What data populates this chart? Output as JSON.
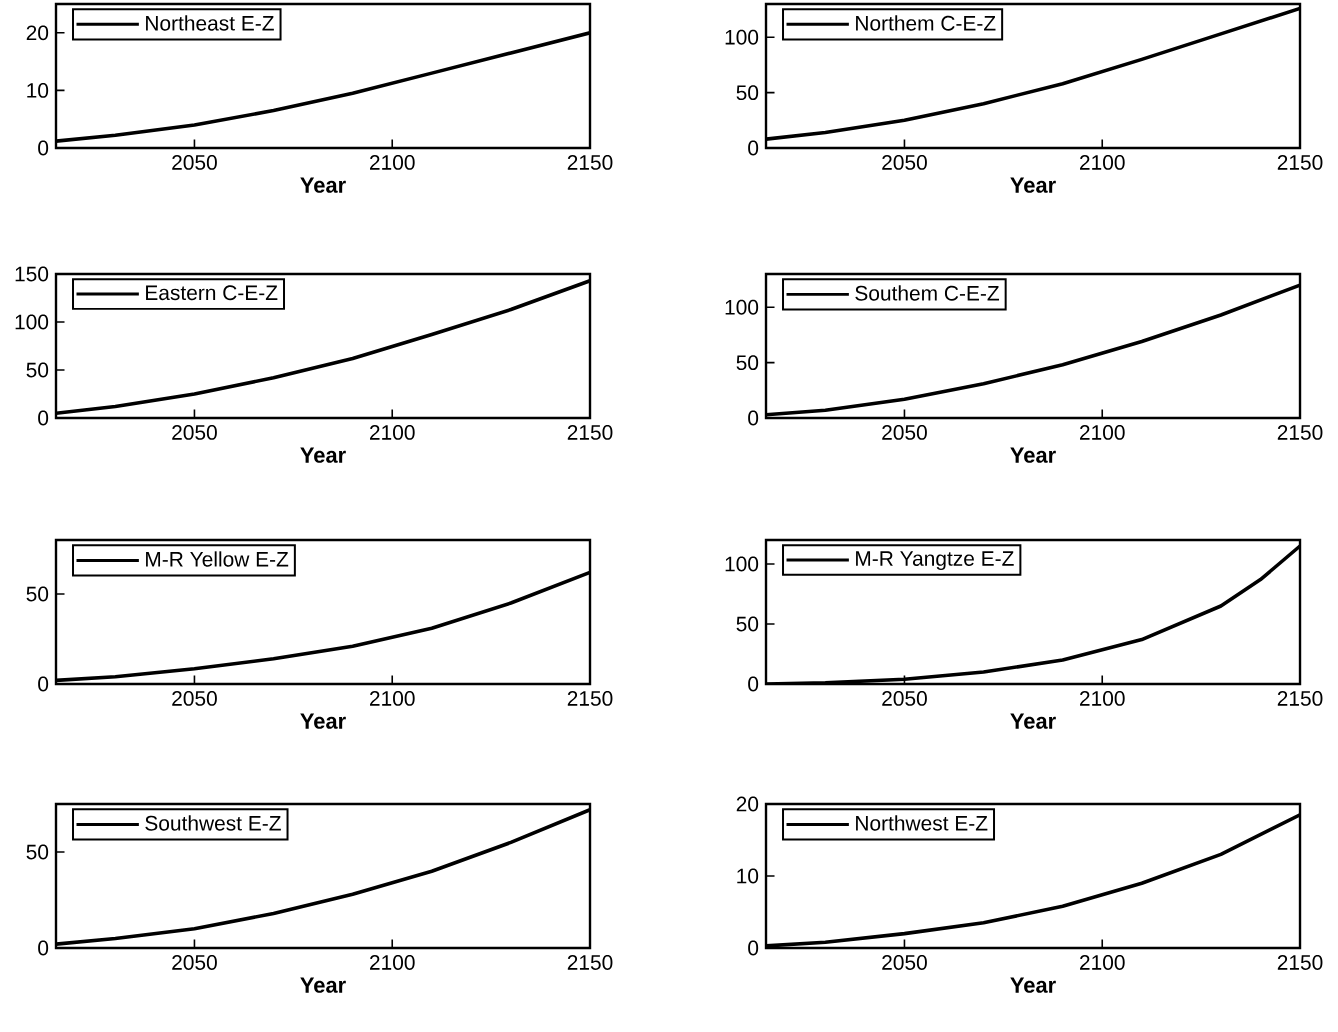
{
  "chart_data": [
    {
      "type": "line",
      "x": [
        2015,
        2030,
        2050,
        2070,
        2090,
        2110,
        2130,
        2150
      ],
      "xlabel": "Year",
      "xlim": [
        2015,
        2150
      ],
      "xticks": [
        2050,
        2100,
        2150
      ],
      "ylim": [
        0,
        25
      ],
      "yticks": [
        0,
        10,
        20
      ],
      "legend": "top left",
      "series": [
        {
          "name": "Northeast E-Z",
          "color": "#000000",
          "values": [
            1.2,
            2.2,
            4,
            6.5,
            9.5,
            13,
            16.5,
            20
          ]
        }
      ]
    },
    {
      "type": "line",
      "x": [
        2015,
        2030,
        2050,
        2070,
        2090,
        2110,
        2130,
        2150
      ],
      "xlabel": "Year",
      "xlim": [
        2015,
        2150
      ],
      "xticks": [
        2050,
        2100,
        2150
      ],
      "ylim": [
        0,
        130
      ],
      "yticks": [
        0,
        50,
        100
      ],
      "legend": "top left",
      "series": [
        {
          "name": "Northem C-E-Z",
          "color": "#000000",
          "values": [
            8,
            14,
            25,
            40,
            58,
            80,
            103,
            126
          ]
        }
      ]
    },
    {
      "type": "line",
      "x": [
        2015,
        2030,
        2050,
        2070,
        2090,
        2110,
        2130,
        2150
      ],
      "xlabel": "Year",
      "xlim": [
        2015,
        2150
      ],
      "xticks": [
        2050,
        2100,
        2150
      ],
      "ylim": [
        0,
        150
      ],
      "yticks": [
        0,
        50,
        100,
        150
      ],
      "legend": "top left",
      "series": [
        {
          "name": "Eastern C-E-Z",
          "color": "#000000",
          "values": [
            5,
            12,
            25,
            42,
            62,
            87,
            113,
            143
          ]
        }
      ]
    },
    {
      "type": "line",
      "x": [
        2015,
        2030,
        2050,
        2070,
        2090,
        2110,
        2130,
        2150
      ],
      "xlabel": "Year",
      "xlim": [
        2015,
        2150
      ],
      "xticks": [
        2050,
        2100,
        2150
      ],
      "ylim": [
        0,
        130
      ],
      "yticks": [
        0,
        50,
        100
      ],
      "legend": "top left",
      "series": [
        {
          "name": "Southem C-E-Z",
          "color": "#000000",
          "values": [
            3,
            7,
            17,
            31,
            48,
            69,
            93,
            120
          ]
        }
      ]
    },
    {
      "type": "line",
      "x": [
        2015,
        2030,
        2050,
        2070,
        2090,
        2110,
        2130,
        2150
      ],
      "xlabel": "Year",
      "xlim": [
        2015,
        2150
      ],
      "xticks": [
        2050,
        2100,
        2150
      ],
      "ylim": [
        0,
        80
      ],
      "yticks": [
        0,
        50
      ],
      "legend": "top left",
      "series": [
        {
          "name": "M-R Yellow E-Z",
          "color": "#000000",
          "values": [
            2,
            4,
            8.5,
            14,
            21,
            31,
            45,
            62
          ]
        }
      ]
    },
    {
      "type": "line",
      "x": [
        2015,
        2030,
        2050,
        2070,
        2090,
        2110,
        2130,
        2140,
        2150
      ],
      "xlabel": "Year",
      "xlim": [
        2015,
        2150
      ],
      "xticks": [
        2050,
        2100,
        2150
      ],
      "ylim": [
        0,
        120
      ],
      "yticks": [
        0,
        50,
        100
      ],
      "legend": "top left",
      "series": [
        {
          "name": "M-R Yangtze E-Z",
          "color": "#000000",
          "values": [
            0,
            1,
            4,
            10,
            20,
            37,
            65,
            87,
            115
          ]
        }
      ]
    },
    {
      "type": "line",
      "x": [
        2015,
        2030,
        2050,
        2070,
        2090,
        2110,
        2130,
        2150
      ],
      "xlabel": "Year",
      "xlim": [
        2015,
        2150
      ],
      "xticks": [
        2050,
        2100,
        2150
      ],
      "ylim": [
        0,
        75
      ],
      "yticks": [
        0,
        50
      ],
      "legend": "top left",
      "series": [
        {
          "name": "Southwest E-Z",
          "color": "#000000",
          "values": [
            2,
            5,
            10,
            18,
            28,
            40,
            55,
            72
          ]
        }
      ]
    },
    {
      "type": "line",
      "x": [
        2015,
        2030,
        2050,
        2070,
        2090,
        2110,
        2130,
        2150
      ],
      "xlabel": "Year",
      "xlim": [
        2015,
        2150
      ],
      "xticks": [
        2050,
        2100,
        2150
      ],
      "ylim": [
        0,
        20
      ],
      "yticks": [
        0,
        10,
        20
      ],
      "legend": "top left",
      "series": [
        {
          "name": "Northwest E-Z",
          "color": "#000000",
          "values": [
            0.3,
            0.8,
            2,
            3.5,
            5.8,
            9,
            13,
            18.5
          ]
        }
      ]
    }
  ]
}
